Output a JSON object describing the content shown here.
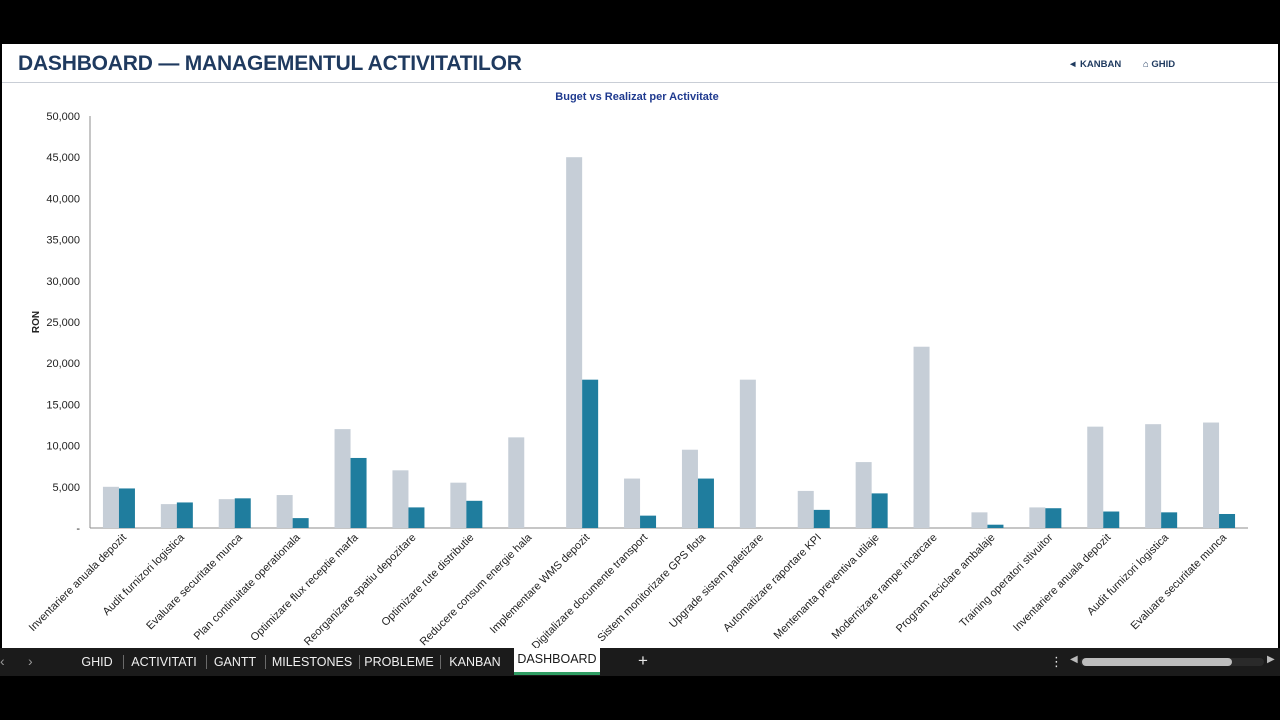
{
  "header": {
    "title": "DASHBOARD — MANAGEMENTUL ACTIVITATILOR",
    "nav_kanban": "◄ KANBAN",
    "nav_ghid": "⌂ GHID"
  },
  "tabs": {
    "items": [
      "GHID",
      "ACTIVITATI",
      "GANTT",
      "MILESTONES",
      "PROBLEME",
      "KANBAN"
    ],
    "active": "DASHBOARD",
    "add_label": "+",
    "more_label": "⋮"
  },
  "colors": {
    "buget": "#c6ced7",
    "realizat": "#1f7d9e",
    "title": "#1f3a5f",
    "chart_title": "#1f3a8f",
    "axis": "#8c8c8c"
  },
  "chart_data": {
    "type": "bar",
    "title": "Buget vs Realizat per Activitate",
    "ylabel": "RON",
    "xlabel": "",
    "ylim": [
      0,
      50000
    ],
    "yticks": [
      0,
      5000,
      10000,
      15000,
      20000,
      25000,
      30000,
      35000,
      40000,
      45000,
      50000
    ],
    "ytick_labels": [
      "-",
      "5,000",
      "10,000",
      "15,000",
      "20,000",
      "25,000",
      "30,000",
      "35,000",
      "40,000",
      "45,000",
      "50,000"
    ],
    "grid": false,
    "categories": [
      "Inventariere anuala depozit",
      "Audit furnizori logistica",
      "Evaluare securitate munca",
      "Plan continuitate operationala",
      "Optimizare flux receptie marfa",
      "Reorganizare spatiu depozitare",
      "Optimizare rute distributie",
      "Reducere consum energie hala",
      "Implementare WMS depozit",
      "Digitalizare documente transport",
      "Sistem monitorizare GPS flota",
      "Upgrade sistem paletizare",
      "Automatizare raportare KPI",
      "Mentenanta preventiva utilaje",
      "Modernizare rampe incarcare",
      "Program reciclare ambalaje",
      "Training operatori stivuitor",
      "Inventariere anuala depozit",
      "Audit furnizori logistica",
      "Evaluare securitate munca"
    ],
    "series": [
      {
        "values": [
          5000,
          2900,
          3500,
          4000,
          12000,
          7000,
          5500,
          11000,
          45000,
          6000,
          9500,
          18000,
          4500,
          8000,
          22000,
          1900,
          2500,
          12300,
          12600,
          12800
        ]
      },
      {
        "values": [
          4800,
          3100,
          3600,
          1200,
          8500,
          2500,
          3300,
          0,
          18000,
          1500,
          6000,
          0,
          2200,
          4200,
          0,
          400,
          2400,
          2000,
          1900,
          1700
        ]
      }
    ]
  }
}
